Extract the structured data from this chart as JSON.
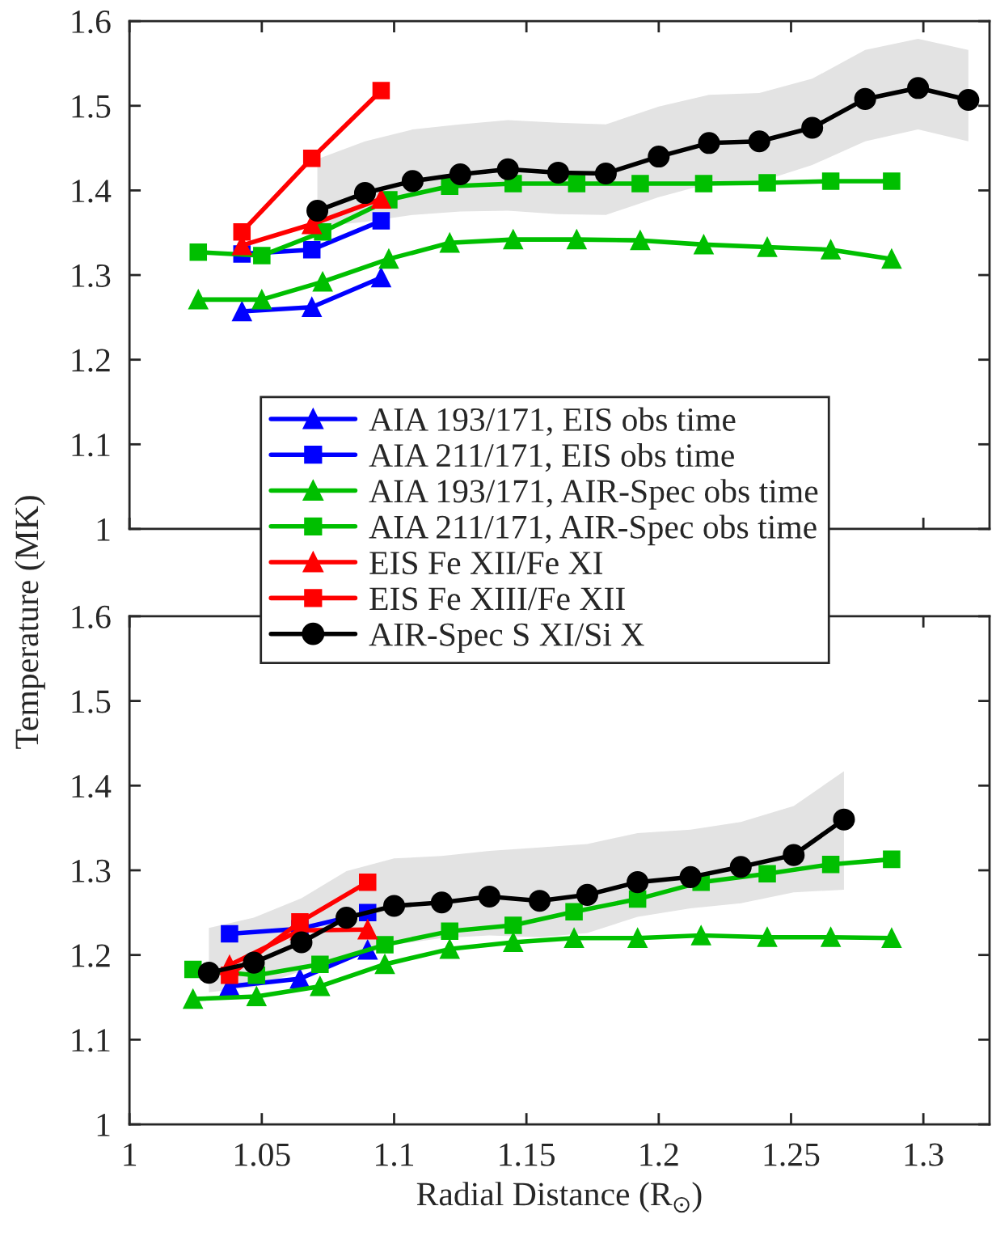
{
  "chart_data": [
    {
      "type": "line",
      "ylabel": "Temperature (MK)",
      "xlim": [
        1,
        1.325
      ],
      "ylim": [
        1,
        1.6
      ],
      "xticks": [
        1,
        1.05,
        1.1,
        1.15,
        1.2,
        1.25,
        1.3
      ],
      "yticks": [
        1,
        1.1,
        1.2,
        1.3,
        1.4,
        1.5,
        1.6
      ],
      "tick_labels": "y",
      "legend": "bottom",
      "grid": false,
      "line_style": "solid",
      "series": [
        {
          "name": "AIA 193/171, EIS obs time",
          "color": "#0000ff",
          "marker": "triangle",
          "x": [
            1.0425,
            1.0689,
            1.0951
          ],
          "values": [
            1.257,
            1.262,
            1.297
          ]
        },
        {
          "name": "AIA 211/171, EIS obs time",
          "color": "#0000ff",
          "marker": "square",
          "x": [
            1.0425,
            1.0689,
            1.0951
          ],
          "values": [
            1.325,
            1.33,
            1.364
          ]
        },
        {
          "name": "AIA 193/171, AIR-Spec obs time",
          "color": "#00bf00",
          "marker": "triangle",
          "x": [
            1.026,
            1.05,
            1.073,
            1.098,
            1.121,
            1.145,
            1.169,
            1.193,
            1.217,
            1.241,
            1.265,
            1.288
          ],
          "values": [
            1.271,
            1.271,
            1.292,
            1.319,
            1.338,
            1.342,
            1.342,
            1.341,
            1.336,
            1.333,
            1.33,
            1.319
          ]
        },
        {
          "name": "AIA 211/171, AIR-Spec obs time",
          "color": "#00bf00",
          "marker": "square",
          "x": [
            1.026,
            1.05,
            1.073,
            1.098,
            1.121,
            1.145,
            1.169,
            1.193,
            1.217,
            1.241,
            1.265,
            1.288
          ],
          "values": [
            1.327,
            1.323,
            1.351,
            1.389,
            1.405,
            1.408,
            1.408,
            1.408,
            1.408,
            1.409,
            1.411,
            1.411
          ]
        },
        {
          "name": "EIS Fe XII/Fe XI",
          "color": "#ff0000",
          "marker": "triangle",
          "x": [
            1.0425,
            1.0689,
            1.0951
          ],
          "values": [
            1.335,
            1.36,
            1.39
          ]
        },
        {
          "name": "EIS Fe XIII/Fe XII",
          "color": "#ff0000",
          "marker": "square",
          "x": [
            1.0425,
            1.0689,
            1.0951
          ],
          "values": [
            1.351,
            1.438,
            1.518
          ]
        },
        {
          "name": "AIR-Spec S XI/Si X",
          "color": "#000000",
          "marker": "circle",
          "x": [
            1.071,
            1.089,
            1.107,
            1.125,
            1.143,
            1.162,
            1.18,
            1.2,
            1.219,
            1.238,
            1.258,
            1.278,
            1.298,
            1.317
          ],
          "values": [
            1.376,
            1.397,
            1.411,
            1.419,
            1.425,
            1.421,
            1.42,
            1.44,
            1.456,
            1.458,
            1.474,
            1.508,
            1.521,
            1.507
          ],
          "lower": [
            1.357,
            1.363,
            1.371,
            1.375,
            1.376,
            1.372,
            1.371,
            1.392,
            1.408,
            1.41,
            1.43,
            1.458,
            1.472,
            1.458
          ],
          "upper": [
            1.437,
            1.458,
            1.472,
            1.478,
            1.483,
            1.48,
            1.478,
            1.499,
            1.513,
            1.515,
            1.532,
            1.566,
            1.579,
            1.566
          ]
        }
      ]
    },
    {
      "type": "line",
      "xlabel": "Radial Distance (R$_{⊙}$)",
      "xlim": [
        1,
        1.325
      ],
      "ylim": [
        1,
        1.6
      ],
      "xticks": [
        1,
        1.05,
        1.1,
        1.15,
        1.2,
        1.25,
        1.3
      ],
      "yticks": [
        1,
        1.1,
        1.2,
        1.3,
        1.4,
        1.5,
        1.6
      ],
      "grid": false,
      "line_style": "solid",
      "series": [
        {
          "color": "#0000ff",
          "marker": "triangle",
          "x": [
            1.0378,
            1.0644,
            1.09
          ],
          "values": [
            1.163,
            1.172,
            1.206
          ]
        },
        {
          "color": "#0000ff",
          "marker": "square",
          "x": [
            1.0378,
            1.0644,
            1.09
          ],
          "values": [
            1.225,
            1.231,
            1.25
          ]
        },
        {
          "color": "#00bf00",
          "marker": "triangle",
          "x": [
            1.024,
            1.048,
            1.072,
            1.0965,
            1.121,
            1.145,
            1.168,
            1.192,
            1.216,
            1.241,
            1.265,
            1.288
          ],
          "values": [
            1.148,
            1.151,
            1.163,
            1.189,
            1.207,
            1.215,
            1.22,
            1.22,
            1.223,
            1.221,
            1.221,
            1.22
          ]
        },
        {
          "color": "#00bf00",
          "marker": "square",
          "x": [
            1.024,
            1.048,
            1.072,
            1.0965,
            1.121,
            1.145,
            1.168,
            1.192,
            1.216,
            1.241,
            1.265,
            1.288
          ],
          "values": [
            1.183,
            1.176,
            1.189,
            1.212,
            1.228,
            1.235,
            1.251,
            1.266,
            1.286,
            1.296,
            1.307,
            1.313
          ]
        },
        {
          "color": "#ff0000",
          "marker": "triangle",
          "x": [
            1.0378,
            1.0644,
            1.09
          ],
          "values": [
            1.188,
            1.229,
            1.23
          ]
        },
        {
          "color": "#ff0000",
          "marker": "square",
          "x": [
            1.0378,
            1.0644,
            1.09
          ],
          "values": [
            1.176,
            1.239,
            1.286
          ]
        },
        {
          "color": "#000000",
          "marker": "circle",
          "x": [
            1.03,
            1.047,
            1.065,
            1.082,
            1.1,
            1.118,
            1.136,
            1.155,
            1.173,
            1.192,
            1.212,
            1.231,
            1.251,
            1.27
          ],
          "values": [
            1.179,
            1.191,
            1.215,
            1.244,
            1.258,
            1.262,
            1.269,
            1.264,
            1.271,
            1.286,
            1.292,
            1.304,
            1.318,
            1.36
          ],
          "lower": [
            1.156,
            1.162,
            1.181,
            1.194,
            1.212,
            1.22,
            1.223,
            1.221,
            1.226,
            1.245,
            1.255,
            1.261,
            1.274,
            1.277
          ],
          "upper": [
            1.232,
            1.244,
            1.267,
            1.299,
            1.314,
            1.317,
            1.323,
            1.327,
            1.331,
            1.344,
            1.348,
            1.357,
            1.376,
            1.417
          ]
        }
      ]
    }
  ]
}
